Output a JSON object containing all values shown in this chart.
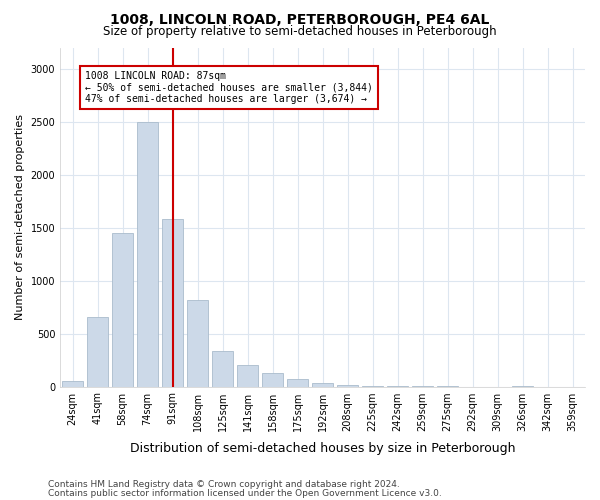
{
  "title": "1008, LINCOLN ROAD, PETERBOROUGH, PE4 6AL",
  "subtitle": "Size of property relative to semi-detached houses in Peterborough",
  "xlabel": "Distribution of semi-detached houses by size in Peterborough",
  "ylabel": "Number of semi-detached properties",
  "footer_line1": "Contains HM Land Registry data © Crown copyright and database right 2024.",
  "footer_line2": "Contains public sector information licensed under the Open Government Licence v3.0.",
  "categories": [
    "24sqm",
    "41sqm",
    "58sqm",
    "74sqm",
    "91sqm",
    "108sqm",
    "125sqm",
    "141sqm",
    "158sqm",
    "175sqm",
    "192sqm",
    "208sqm",
    "225sqm",
    "242sqm",
    "259sqm",
    "275sqm",
    "292sqm",
    "309sqm",
    "326sqm",
    "342sqm",
    "359sqm"
  ],
  "values": [
    50,
    660,
    1450,
    2500,
    1580,
    820,
    340,
    200,
    130,
    70,
    30,
    15,
    8,
    4,
    2,
    1,
    0,
    0,
    1,
    0,
    0
  ],
  "bar_color": "#ccd9e8",
  "bar_edge_color": "#aabccc",
  "vline_color": "#cc0000",
  "vline_index": 4.5,
  "ylim": [
    0,
    3200
  ],
  "yticks": [
    0,
    500,
    1000,
    1500,
    2000,
    2500,
    3000
  ],
  "annotation_title": "1008 LINCOLN ROAD: 87sqm",
  "annotation_line1": "← 50% of semi-detached houses are smaller (3,844)",
  "annotation_line2": "47% of semi-detached houses are larger (3,674) →",
  "annotation_box_facecolor": "#ffffff",
  "annotation_box_edgecolor": "#cc0000",
  "background_color": "#ffffff",
  "grid_color": "#dde6f0",
  "title_fontsize": 10,
  "subtitle_fontsize": 8.5,
  "tick_fontsize": 7,
  "ylabel_fontsize": 8,
  "xlabel_fontsize": 9,
  "footer_fontsize": 6.5
}
